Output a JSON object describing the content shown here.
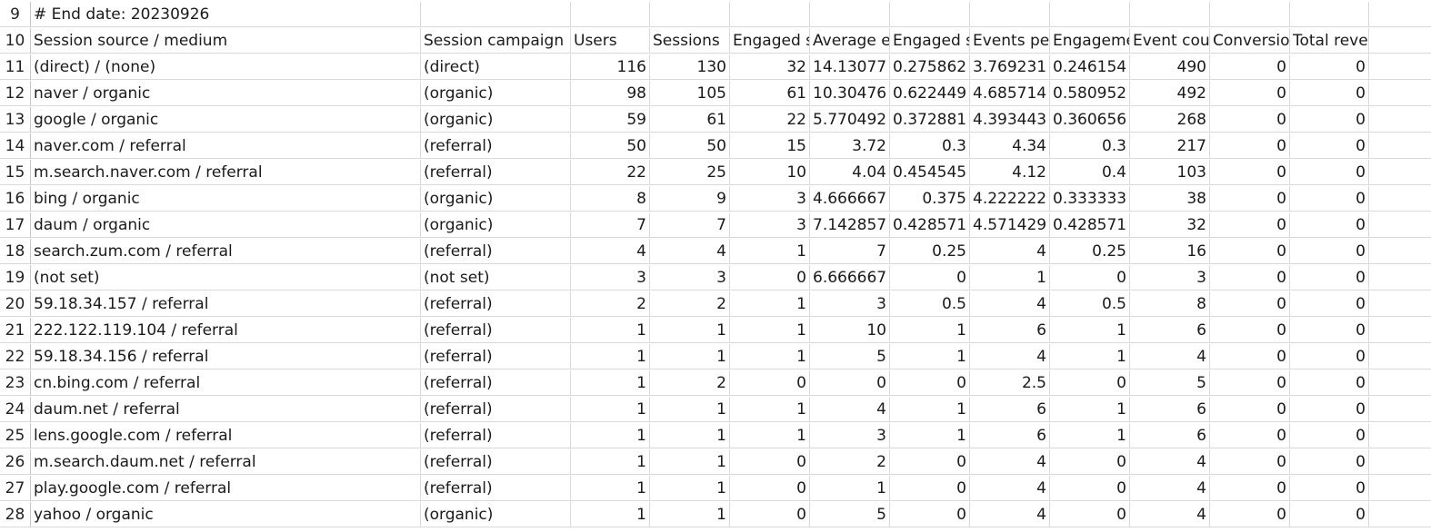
{
  "sheet": {
    "rows": [
      {
        "n": "9",
        "cells": [
          "# End date: 20230926",
          "",
          "",
          "",
          "",
          "",
          "",
          "",
          "",
          "",
          "",
          ""
        ]
      },
      {
        "n": "10",
        "cells": [
          "Session source / medium",
          "Session campaign",
          "Users",
          "Sessions",
          "Engaged s",
          "Average e",
          "Engaged s",
          "Events per",
          "Engageme",
          "Event cour",
          "Conversior",
          "Total revenue"
        ]
      },
      {
        "n": "11",
        "cells": [
          "(direct) / (none)",
          "(direct)",
          "116",
          "130",
          "32",
          "14.13077",
          "0.275862",
          "3.769231",
          "0.246154",
          "490",
          "0",
          "0"
        ]
      },
      {
        "n": "12",
        "cells": [
          "naver / organic",
          "(organic)",
          "98",
          "105",
          "61",
          "10.30476",
          "0.622449",
          "4.685714",
          "0.580952",
          "492",
          "0",
          "0"
        ]
      },
      {
        "n": "13",
        "cells": [
          "google / organic",
          "(organic)",
          "59",
          "61",
          "22",
          "5.770492",
          "0.372881",
          "4.393443",
          "0.360656",
          "268",
          "0",
          "0"
        ]
      },
      {
        "n": "14",
        "cells": [
          "naver.com / referral",
          "(referral)",
          "50",
          "50",
          "15",
          "3.72",
          "0.3",
          "4.34",
          "0.3",
          "217",
          "0",
          "0"
        ]
      },
      {
        "n": "15",
        "cells": [
          "m.search.naver.com / referral",
          "(referral)",
          "22",
          "25",
          "10",
          "4.04",
          "0.454545",
          "4.12",
          "0.4",
          "103",
          "0",
          "0"
        ]
      },
      {
        "n": "16",
        "cells": [
          "bing / organic",
          "(organic)",
          "8",
          "9",
          "3",
          "4.666667",
          "0.375",
          "4.222222",
          "0.333333",
          "38",
          "0",
          "0"
        ]
      },
      {
        "n": "17",
        "cells": [
          "daum / organic",
          "(organic)",
          "7",
          "7",
          "3",
          "7.142857",
          "0.428571",
          "4.571429",
          "0.428571",
          "32",
          "0",
          "0"
        ]
      },
      {
        "n": "18",
        "cells": [
          "search.zum.com / referral",
          "(referral)",
          "4",
          "4",
          "1",
          "7",
          "0.25",
          "4",
          "0.25",
          "16",
          "0",
          "0"
        ]
      },
      {
        "n": "19",
        "cells": [
          "(not set)",
          "(not set)",
          "3",
          "3",
          "0",
          "6.666667",
          "0",
          "1",
          "0",
          "3",
          "0",
          "0"
        ]
      },
      {
        "n": "20",
        "cells": [
          "59.18.34.157 / referral",
          "(referral)",
          "2",
          "2",
          "1",
          "3",
          "0.5",
          "4",
          "0.5",
          "8",
          "0",
          "0"
        ]
      },
      {
        "n": "21",
        "cells": [
          "222.122.119.104 / referral",
          "(referral)",
          "1",
          "1",
          "1",
          "10",
          "1",
          "6",
          "1",
          "6",
          "0",
          "0"
        ]
      },
      {
        "n": "22",
        "cells": [
          "59.18.34.156 / referral",
          "(referral)",
          "1",
          "1",
          "1",
          "5",
          "1",
          "4",
          "1",
          "4",
          "0",
          "0"
        ]
      },
      {
        "n": "23",
        "cells": [
          "cn.bing.com / referral",
          "(referral)",
          "1",
          "2",
          "0",
          "0",
          "0",
          "2.5",
          "0",
          "5",
          "0",
          "0"
        ]
      },
      {
        "n": "24",
        "cells": [
          "daum.net / referral",
          "(referral)",
          "1",
          "1",
          "1",
          "4",
          "1",
          "6",
          "1",
          "6",
          "0",
          "0"
        ]
      },
      {
        "n": "25",
        "cells": [
          "lens.google.com / referral",
          "(referral)",
          "1",
          "1",
          "1",
          "3",
          "1",
          "6",
          "1",
          "6",
          "0",
          "0"
        ]
      },
      {
        "n": "26",
        "cells": [
          "m.search.daum.net / referral",
          "(referral)",
          "1",
          "1",
          "0",
          "2",
          "0",
          "4",
          "0",
          "4",
          "0",
          "0"
        ]
      },
      {
        "n": "27",
        "cells": [
          "play.google.com / referral",
          "(referral)",
          "1",
          "1",
          "0",
          "1",
          "0",
          "4",
          "0",
          "4",
          "0",
          "0"
        ]
      },
      {
        "n": "28",
        "cells": [
          "yahoo / organic",
          "(organic)",
          "1",
          "1",
          "0",
          "5",
          "0",
          "4",
          "0",
          "4",
          "0",
          "0"
        ]
      }
    ]
  }
}
